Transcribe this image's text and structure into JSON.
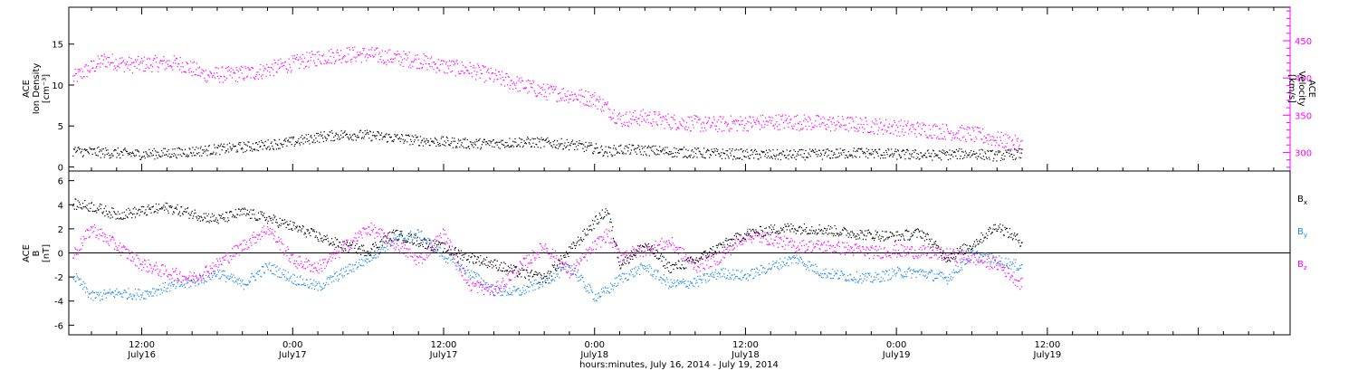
{
  "colors": {
    "density": "#000000",
    "velocity": "#ff00ff",
    "bx": "#000000",
    "by": "#1a8ae6",
    "bz": "#ff00ff"
  },
  "bottom_label": "hours:minutes, July 16, 2014 - July 19, 2014",
  "x_ticks": [
    {
      "time": "12:00",
      "date": "July16"
    },
    {
      "time": "0:00",
      "date": "July17"
    },
    {
      "time": "12:00",
      "date": "July17"
    },
    {
      "time": "0:00",
      "date": "July18"
    },
    {
      "time": "12:00",
      "date": "July18"
    },
    {
      "time": "0:00",
      "date": "July19"
    },
    {
      "time": "12:00",
      "date": "July19"
    }
  ],
  "chart_data": [
    {
      "type": "scatter",
      "panel": "top",
      "ylabel_left": [
        "ACE",
        "Ion Density",
        "[cm⁻³]"
      ],
      "ylabel_right": [
        "ACE",
        "Velocity",
        "[km/s]"
      ],
      "x_unit": "hours since 2014-07-16 00:00",
      "xlim": [
        6.2,
        103.3
      ],
      "ylim_left": [
        -0.5,
        19.5
      ],
      "ylim_right": [
        275,
        495
      ],
      "yticks_left": [
        0,
        5,
        10,
        15
      ],
      "yticks_right": [
        300,
        350,
        400,
        450
      ],
      "series": [
        {
          "name": "Ion Density",
          "axis": "left",
          "points": [
            [
              6.5,
              2.0
            ],
            [
              9,
              1.8
            ],
            [
              12,
              1.6
            ],
            [
              15,
              1.8
            ],
            [
              18,
              2.2
            ],
            [
              21,
              2.6
            ],
            [
              24,
              3.1
            ],
            [
              26,
              3.7
            ],
            [
              28,
              4.0
            ],
            [
              30,
              3.9
            ],
            [
              32,
              3.6
            ],
            [
              34,
              3.3
            ],
            [
              36,
              3.1
            ],
            [
              38,
              2.9
            ],
            [
              40,
              2.9
            ],
            [
              42,
              3.1
            ],
            [
              44,
              3.0
            ],
            [
              46,
              2.8
            ],
            [
              48,
              2.3
            ],
            [
              49,
              1.9
            ],
            [
              50,
              2.2
            ],
            [
              52,
              2.1
            ],
            [
              54,
              1.9
            ],
            [
              57,
              1.7
            ],
            [
              60,
              1.6
            ],
            [
              63,
              1.5
            ],
            [
              66,
              1.6
            ],
            [
              69,
              1.8
            ],
            [
              72,
              1.6
            ],
            [
              75,
              1.5
            ],
            [
              78,
              1.7
            ],
            [
              80,
              1.4
            ],
            [
              82,
              1.7
            ]
          ]
        },
        {
          "name": "Velocity",
          "axis": "right",
          "points": [
            [
              6.5,
              400
            ],
            [
              9,
              425
            ],
            [
              11,
              418
            ],
            [
              13,
              420
            ],
            [
              15,
              420
            ],
            [
              17,
              405
            ],
            [
              19,
              405
            ],
            [
              21,
              408
            ],
            [
              24,
              420
            ],
            [
              26,
              428
            ],
            [
              28,
              432
            ],
            [
              30,
              432
            ],
            [
              32,
              428
            ],
            [
              34,
              424
            ],
            [
              36,
              416
            ],
            [
              38,
              412
            ],
            [
              40,
              402
            ],
            [
              42,
              392
            ],
            [
              44,
              382
            ],
            [
              46,
              378
            ],
            [
              48,
              372
            ],
            [
              49,
              360
            ],
            [
              50,
              345
            ],
            [
              52,
              348
            ],
            [
              54,
              342
            ],
            [
              57,
              338
            ],
            [
              60,
              340
            ],
            [
              63,
              342
            ],
            [
              66,
              340
            ],
            [
              69,
              338
            ],
            [
              72,
              334
            ],
            [
              75,
              330
            ],
            [
              78,
              325
            ],
            [
              80,
              318
            ],
            [
              82,
              310
            ]
          ]
        }
      ]
    },
    {
      "type": "scatter",
      "panel": "bottom",
      "ylabel_left": [
        "ACE",
        "B",
        "[nT]"
      ],
      "x_unit": "hours since 2014-07-16 00:00",
      "xlim": [
        6.2,
        103.3
      ],
      "ylim": [
        -6.8,
        6.8
      ],
      "yticks": [
        -6,
        -4,
        -2,
        0,
        2,
        4,
        6
      ],
      "zero_line": true,
      "series": [
        {
          "name": "Bx",
          "label_main": "B",
          "label_sub": "x",
          "points": [
            [
              6.5,
              4.1
            ],
            [
              8,
              3.9
            ],
            [
              10,
              3.2
            ],
            [
              12,
              3.5
            ],
            [
              14,
              3.8
            ],
            [
              16,
              3.3
            ],
            [
              18,
              2.8
            ],
            [
              20,
              3.4
            ],
            [
              22,
              2.9
            ],
            [
              24,
              2.2
            ],
            [
              26,
              1.4
            ],
            [
              28,
              0.6
            ],
            [
              30,
              0.2
            ],
            [
              32,
              1.6
            ],
            [
              34,
              1.0
            ],
            [
              36,
              0.4
            ],
            [
              38,
              -0.3
            ],
            [
              40,
              -0.9
            ],
            [
              42,
              -1.6
            ],
            [
              44,
              -2.1
            ],
            [
              46,
              0.2
            ],
            [
              48,
              2.6
            ],
            [
              49,
              3.6
            ],
            [
              50,
              -0.9
            ],
            [
              52,
              0.7
            ],
            [
              54,
              -1.2
            ],
            [
              56,
              -0.6
            ],
            [
              58,
              0.6
            ],
            [
              60,
              1.6
            ],
            [
              63,
              2.1
            ],
            [
              66,
              2.0
            ],
            [
              69,
              1.6
            ],
            [
              72,
              1.4
            ],
            [
              74,
              1.7
            ],
            [
              76,
              -0.4
            ],
            [
              78,
              0.7
            ],
            [
              80,
              2.3
            ],
            [
              82,
              0.9
            ]
          ]
        },
        {
          "name": "By",
          "label_main": "B",
          "label_sub": "y",
          "points": [
            [
              6.5,
              -1.8
            ],
            [
              8,
              -3.6
            ],
            [
              10,
              -3.3
            ],
            [
              12,
              -3.4
            ],
            [
              14,
              -2.8
            ],
            [
              16,
              -2.4
            ],
            [
              18,
              -1.6
            ],
            [
              20,
              -2.6
            ],
            [
              22,
              -1.1
            ],
            [
              24,
              -2.1
            ],
            [
              26,
              -2.8
            ],
            [
              28,
              -1.6
            ],
            [
              30,
              -0.4
            ],
            [
              32,
              1.1
            ],
            [
              34,
              1.6
            ],
            [
              36,
              -0.2
            ],
            [
              38,
              -1.6
            ],
            [
              40,
              -3.1
            ],
            [
              42,
              -3.2
            ],
            [
              44,
              -2.3
            ],
            [
              46,
              -1.1
            ],
            [
              48,
              -3.6
            ],
            [
              49,
              -3.1
            ],
            [
              50,
              -2.1
            ],
            [
              52,
              -1.1
            ],
            [
              54,
              -2.6
            ],
            [
              56,
              -2.4
            ],
            [
              58,
              -1.6
            ],
            [
              60,
              -1.9
            ],
            [
              62,
              -1.1
            ],
            [
              64,
              -0.4
            ],
            [
              66,
              -1.6
            ],
            [
              68,
              -1.9
            ],
            [
              70,
              -2.1
            ],
            [
              72,
              -1.6
            ],
            [
              74,
              -1.6
            ],
            [
              76,
              -2.1
            ],
            [
              78,
              -0.1
            ],
            [
              80,
              -0.6
            ],
            [
              82,
              -1.1
            ]
          ]
        },
        {
          "name": "Bz",
          "label_main": "B",
          "label_sub": "z",
          "points": [
            [
              6.5,
              -0.2
            ],
            [
              8,
              2.1
            ],
            [
              10,
              0.6
            ],
            [
              12,
              -0.9
            ],
            [
              14,
              -1.6
            ],
            [
              16,
              -2.1
            ],
            [
              18,
              -0.9
            ],
            [
              20,
              0.6
            ],
            [
              22,
              2.1
            ],
            [
              24,
              -0.6
            ],
            [
              26,
              -1.2
            ],
            [
              28,
              0.4
            ],
            [
              30,
              2.1
            ],
            [
              32,
              0.9
            ],
            [
              34,
              -0.6
            ],
            [
              36,
              1.6
            ],
            [
              38,
              -2.6
            ],
            [
              40,
              -3.1
            ],
            [
              42,
              -1.2
            ],
            [
              44,
              0.6
            ],
            [
              46,
              -1.6
            ],
            [
              48,
              0.6
            ],
            [
              49,
              1.6
            ],
            [
              50,
              -0.2
            ],
            [
              52,
              0.3
            ],
            [
              54,
              0.9
            ],
            [
              56,
              -1.1
            ],
            [
              58,
              -0.3
            ],
            [
              60,
              1.5
            ],
            [
              62,
              1.2
            ],
            [
              64,
              0.6
            ],
            [
              66,
              0.6
            ],
            [
              68,
              0.4
            ],
            [
              70,
              0.1
            ],
            [
              72,
              0.2
            ],
            [
              74,
              0.1
            ],
            [
              76,
              -0.1
            ],
            [
              78,
              -0.4
            ],
            [
              80,
              -0.9
            ],
            [
              82,
              -2.6
            ]
          ]
        }
      ]
    }
  ]
}
